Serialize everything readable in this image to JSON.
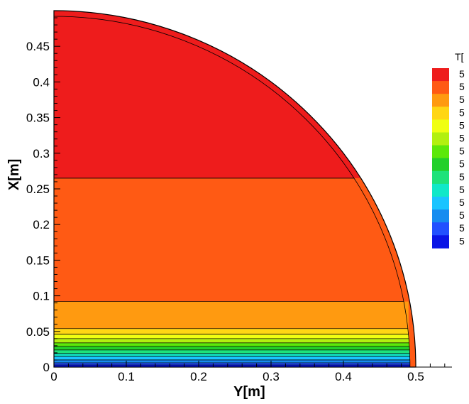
{
  "chart_data": {
    "type": "heatmap",
    "title": "",
    "xlabel": "Y[m]",
    "ylabel": "X[m]",
    "xlim": [
      0,
      0.55
    ],
    "ylim": [
      0,
      0.5
    ],
    "x_ticks": [
      "0",
      "0.1",
      "0.2",
      "0.3",
      "0.4",
      "0.5"
    ],
    "y_ticks": [
      "0",
      "0.05",
      "0.1",
      "0.15",
      "0.2",
      "0.25",
      "0.3",
      "0.35",
      "0.4",
      "0.45"
    ],
    "x_tick_values": [
      0,
      0.1,
      0.2,
      0.3,
      0.4,
      0.5
    ],
    "y_tick_values": [
      0,
      0.05,
      0.1,
      0.15,
      0.2,
      0.25,
      0.3,
      0.35,
      0.4,
      0.45
    ],
    "domain_shape": "quarter-circle",
    "domain_radius": 0.5,
    "legend": {
      "title": "T[",
      "placement": "right",
      "levels": [
        "5",
        "5",
        "5",
        "5",
        "5",
        "5",
        "5",
        "5",
        "5",
        "5",
        "5",
        "5",
        "5",
        "5"
      ],
      "colors": [
        "#ee1c1c",
        "#ff5a14",
        "#ff9a10",
        "#ffd614",
        "#f0ff12",
        "#b2f010",
        "#5ce80a",
        "#22d02a",
        "#1ee27a",
        "#10e8c8",
        "#1ac4ff",
        "#168cf0",
        "#2250ff",
        "#0a14e6"
      ]
    },
    "regions": [
      {
        "level_index": 0,
        "y_range": [
          0.265,
          0.5
        ]
      },
      {
        "level_index": 1,
        "y_range": [
          0.092,
          0.265
        ]
      },
      {
        "level_index": 2,
        "y_range": [
          0.054,
          0.092
        ]
      },
      {
        "level_index": 3,
        "y_range": [
          0.046,
          0.054
        ]
      },
      {
        "level_index": 4,
        "y_range": [
          0.04,
          0.046
        ]
      },
      {
        "level_index": 5,
        "y_range": [
          0.034,
          0.04
        ]
      },
      {
        "level_index": 6,
        "y_range": [
          0.029,
          0.034
        ]
      },
      {
        "level_index": 7,
        "y_range": [
          0.024,
          0.029
        ]
      },
      {
        "level_index": 8,
        "y_range": [
          0.019,
          0.024
        ]
      },
      {
        "level_index": 9,
        "y_range": [
          0.015,
          0.019
        ]
      },
      {
        "level_index": 10,
        "y_range": [
          0.01,
          0.015
        ]
      },
      {
        "level_index": 11,
        "y_range": [
          0.006,
          0.01
        ]
      },
      {
        "level_index": 12,
        "y_range": [
          0.003,
          0.006
        ]
      },
      {
        "level_index": 13,
        "y_range": [
          0.0,
          0.003
        ]
      }
    ],
    "rim_level_index": 1,
    "grid": false
  }
}
